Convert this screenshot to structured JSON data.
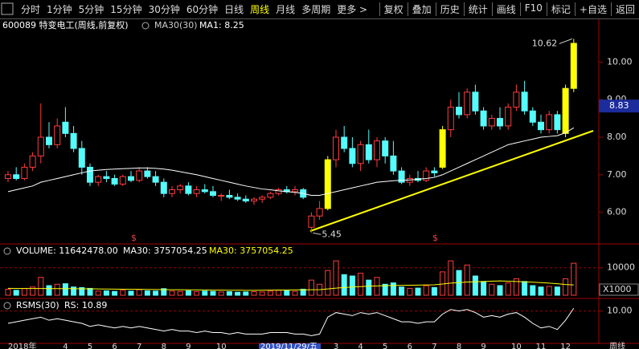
{
  "toolbar": {
    "tabs": [
      "分时",
      "1分钟",
      "5分钟",
      "15分钟",
      "30分钟",
      "60分钟",
      "日线",
      "周线",
      "月线",
      "多周期",
      "更多 >"
    ],
    "buttons": [
      "复权",
      "叠加",
      "历史",
      "统计",
      "画线",
      "F10",
      "标记",
      "+自选",
      "返回"
    ]
  },
  "chart_data": [
    {
      "type": "candlestick",
      "title": "600089 特变电工(周线,前复权)",
      "ma_name": "MA30(30)",
      "ma_value": "MA1: 8.25",
      "categories": [
        "2018年",
        null,
        null,
        null,
        null,
        null,
        null,
        "4",
        null,
        null,
        "5",
        null,
        null,
        "6",
        null,
        null,
        "7",
        null,
        null,
        "8",
        null,
        null,
        "9",
        null,
        null,
        null,
        "10",
        null,
        null,
        null,
        null,
        null,
        null,
        null,
        null,
        null,
        null,
        null,
        null,
        null,
        "3",
        null,
        null,
        "4",
        null,
        null,
        "5",
        null,
        null,
        "6",
        null,
        null,
        "7",
        null,
        null,
        "8",
        null,
        null,
        "9",
        null,
        null,
        null,
        "10",
        null,
        null,
        "11",
        null,
        null,
        "12",
        null
      ],
      "open": [
        6.9,
        7.0,
        6.9,
        7.2,
        7.5,
        8.0,
        7.8,
        8.4,
        8.1,
        7.7,
        7.2,
        6.8,
        6.95,
        6.9,
        6.75,
        6.95,
        6.85,
        7.1,
        6.95,
        6.8,
        6.5,
        6.6,
        6.7,
        6.5,
        6.6,
        6.55,
        6.45,
        6.45,
        6.4,
        6.35,
        6.3,
        6.35,
        6.4,
        6.5,
        6.6,
        6.55,
        6.6,
        5.6,
        5.9,
        6.1,
        7.4,
        8.0,
        7.7,
        7.3,
        7.8,
        7.4,
        7.9,
        7.5,
        7.1,
        6.8,
        6.9,
        6.85,
        7.1,
        7.2,
        8.2,
        8.8,
        8.6,
        9.2,
        8.7,
        8.3,
        8.5,
        8.3,
        8.8,
        9.2,
        8.7,
        8.4,
        8.2,
        8.6,
        8.1,
        9.3
      ],
      "high": [
        7.1,
        7.2,
        7.3,
        7.6,
        8.9,
        8.4,
        8.5,
        8.8,
        8.3,
        7.9,
        7.3,
        7.0,
        7.1,
        7.0,
        7.0,
        7.1,
        7.2,
        7.2,
        7.1,
        6.9,
        6.7,
        6.75,
        6.8,
        6.7,
        6.75,
        6.7,
        6.5,
        6.6,
        6.5,
        6.45,
        6.4,
        6.45,
        6.55,
        6.65,
        6.7,
        6.7,
        6.65,
        6.0,
        6.3,
        7.5,
        8.2,
        8.3,
        8.0,
        7.9,
        8.2,
        8.0,
        8.0,
        7.9,
        7.2,
        7.0,
        7.1,
        7.2,
        7.2,
        8.3,
        9.0,
        9.2,
        9.3,
        9.4,
        8.8,
        8.6,
        8.8,
        8.9,
        9.4,
        9.5,
        8.8,
        8.6,
        8.7,
        8.7,
        9.4,
        10.62
      ],
      "low": [
        6.8,
        6.85,
        6.85,
        7.1,
        7.3,
        7.7,
        7.7,
        8.0,
        7.6,
        7.0,
        6.7,
        6.7,
        6.8,
        6.7,
        6.7,
        6.8,
        6.8,
        6.9,
        6.7,
        6.4,
        6.4,
        6.5,
        6.45,
        6.4,
        6.5,
        6.4,
        6.3,
        6.35,
        6.3,
        6.25,
        6.2,
        6.25,
        6.35,
        6.45,
        6.5,
        6.45,
        6.35,
        5.45,
        5.8,
        6.05,
        7.2,
        7.6,
        7.2,
        7.1,
        7.3,
        7.2,
        7.3,
        7.0,
        6.75,
        6.7,
        6.8,
        6.8,
        6.95,
        7.15,
        8.0,
        8.5,
        8.5,
        8.6,
        8.2,
        8.2,
        8.2,
        8.2,
        8.7,
        8.6,
        8.3,
        8.1,
        8.1,
        8.1,
        8.0,
        9.2
      ],
      "close": [
        7.0,
        6.9,
        7.2,
        7.5,
        8.0,
        7.8,
        8.3,
        8.1,
        7.7,
        7.2,
        6.8,
        6.95,
        6.9,
        6.75,
        6.95,
        6.85,
        7.1,
        6.95,
        6.8,
        6.5,
        6.6,
        6.7,
        6.5,
        6.6,
        6.55,
        6.45,
        6.45,
        6.4,
        6.35,
        6.3,
        6.35,
        6.4,
        6.5,
        6.6,
        6.55,
        6.6,
        6.4,
        5.9,
        6.1,
        7.4,
        8.0,
        7.7,
        7.3,
        7.8,
        7.4,
        7.9,
        7.5,
        7.1,
        6.8,
        6.9,
        6.85,
        7.1,
        7.05,
        8.2,
        8.8,
        8.6,
        9.2,
        8.7,
        8.3,
        8.5,
        8.3,
        8.8,
        9.2,
        8.7,
        8.4,
        8.2,
        8.6,
        8.2,
        9.3,
        10.5
      ],
      "colors": [
        "#ff3c3c",
        "#54fcfc",
        "#ff3c3c",
        "#ff3c3c",
        "#ff3c3c",
        "#54fcfc",
        "#ff3c3c",
        "#54fcfc",
        "#54fcfc",
        "#54fcfc",
        "#54fcfc",
        "#ff3c3c",
        "#54fcfc",
        "#54fcfc",
        "#ff3c3c",
        "#54fcfc",
        "#ff3c3c",
        "#54fcfc",
        "#54fcfc",
        "#54fcfc",
        "#ff3c3c",
        "#ff3c3c",
        "#54fcfc",
        "#ff3c3c",
        "#54fcfc",
        "#54fcfc",
        "#ff3c3c",
        "#54fcfc",
        "#54fcfc",
        "#54fcfc",
        "#ff3c3c",
        "#ff3c3c",
        "#ff3c3c",
        "#ff3c3c",
        "#54fcfc",
        "#ff3c3c",
        "#54fcfc",
        "#ff3c3c",
        "#ff3c3c",
        "#ffff00",
        "#ff3c3c",
        "#54fcfc",
        "#54fcfc",
        "#ff3c3c",
        "#54fcfc",
        "#ff3c3c",
        "#54fcfc",
        "#54fcfc",
        "#54fcfc",
        "#ff3c3c",
        "#54fcfc",
        "#ff3c3c",
        "#54fcfc",
        "#ffff00",
        "#ff3c3c",
        "#54fcfc",
        "#ff3c3c",
        "#54fcfc",
        "#54fcfc",
        "#ff3c3c",
        "#54fcfc",
        "#ff3c3c",
        "#ff3c3c",
        "#54fcfc",
        "#54fcfc",
        "#54fcfc",
        "#ff3c3c",
        "#54fcfc",
        "#ffff00",
        "#ffff00"
      ],
      "ma": [
        6.55,
        6.6,
        6.65,
        6.7,
        6.8,
        6.85,
        6.9,
        6.95,
        7.0,
        7.05,
        7.1,
        7.12,
        7.14,
        7.15,
        7.16,
        7.17,
        7.18,
        7.18,
        7.17,
        7.15,
        7.12,
        7.08,
        7.04,
        7.0,
        6.95,
        6.9,
        6.85,
        6.8,
        6.75,
        6.7,
        6.66,
        6.62,
        6.6,
        6.57,
        6.55,
        6.53,
        6.5,
        6.45,
        6.45,
        6.5,
        6.55,
        6.6,
        6.65,
        6.7,
        6.75,
        6.8,
        6.82,
        6.84,
        6.85,
        6.86,
        6.88,
        6.9,
        6.93,
        7.0,
        7.1,
        7.2,
        7.3,
        7.4,
        7.5,
        7.6,
        7.7,
        7.8,
        7.85,
        7.9,
        7.95,
        8.0,
        8.02,
        8.04,
        8.12,
        8.25
      ],
      "ma_color": "#ffffff",
      "ylim": [
        5.2,
        10.8
      ],
      "yticks": [
        {
          "value": 6,
          "label": "6.00"
        },
        {
          "value": 7,
          "label": "7.00"
        },
        {
          "value": 8,
          "label": "8.00"
        },
        {
          "value": 9,
          "label": "9.00"
        },
        {
          "value": 10,
          "label": "10.00"
        }
      ],
      "high_label": 10.62,
      "low_label": 5.45,
      "last_price": 8.83,
      "markers": [
        "$",
        "$"
      ],
      "cursor_label": "2019/11/29/五",
      "period_label": "周线",
      "grid": false
    },
    {
      "type": "bar",
      "title": "VOLUME: 11642478.00",
      "ma_label": "MA30: 3757054.25",
      "ma_label_2": "MA30: 3757054.25",
      "values": [
        2200,
        1800,
        2500,
        3000,
        6500,
        3500,
        4000,
        4200,
        3000,
        2800,
        2500,
        1500,
        1600,
        1400,
        1800,
        1500,
        2000,
        1600,
        1500,
        2400,
        1500,
        1400,
        1600,
        1300,
        1500,
        1400,
        1200,
        1300,
        1100,
        1200,
        1300,
        1200,
        1500,
        1800,
        1600,
        1400,
        2200,
        5500,
        4000,
        9000,
        12500,
        7500,
        7000,
        8000,
        5500,
        6500,
        4000,
        4500,
        3000,
        2500,
        2600,
        3500,
        2800,
        8500,
        12500,
        9000,
        11000,
        7000,
        5000,
        4000,
        3500,
        4500,
        6000,
        5000,
        3500,
        3000,
        3200,
        3000,
        6000,
        11642
      ],
      "ma": [
        2500,
        2480,
        2460,
        2450,
        2440,
        2430,
        2420,
        2400,
        2380,
        2350,
        2320,
        2290,
        2260,
        2230,
        2200,
        2170,
        2140,
        2110,
        2080,
        2050,
        2020,
        1990,
        1960,
        1930,
        1900,
        1870,
        1850,
        1830,
        1810,
        1800,
        1800,
        1820,
        1850,
        1880,
        1900,
        1930,
        1960,
        2000,
        2050,
        2300,
        2600,
        2800,
        3000,
        3150,
        3300,
        3400,
        3500,
        3550,
        3600,
        3650,
        3700,
        3750,
        3800,
        4100,
        4400,
        4600,
        4800,
        4900,
        5000,
        5100,
        5200,
        5100,
        5000,
        4900,
        4750,
        4600,
        4400,
        4200,
        3900,
        3757
      ],
      "ma_color": "#ffff00",
      "up_color": "#ff3c3c",
      "down_color": "#54fcfc",
      "ylim": [
        0,
        14000
      ],
      "yticks": [
        10000
      ],
      "unit_label": "X1000",
      "grid": true
    },
    {
      "type": "line",
      "title": "RSMS(30)",
      "value_label": "RS: 10.89",
      "values": [
        6,
        6.5,
        7,
        7.5,
        8,
        7,
        7.5,
        7,
        6.5,
        6,
        5,
        5.5,
        5,
        4.5,
        5,
        4.5,
        5,
        4.5,
        4,
        3.5,
        4,
        3.5,
        3.5,
        3,
        3.5,
        3,
        3,
        2.5,
        3,
        2.5,
        2.5,
        2.5,
        3,
        3,
        3,
        2.5,
        2.5,
        2,
        2.5,
        8,
        9.5,
        9,
        8.5,
        9.5,
        9,
        9.5,
        8.5,
        7.5,
        6.5,
        6.5,
        6,
        6.5,
        6.5,
        9,
        10.5,
        10,
        10.5,
        9.5,
        8,
        8.5,
        8,
        9,
        9.5,
        8,
        6,
        4.5,
        5,
        4,
        7,
        10.89
      ],
      "color": "#ffffff",
      "ylim": [
        0,
        12
      ],
      "yticks": [
        {
          "value": 10,
          "label": "10.00"
        }
      ],
      "grid": true
    }
  ]
}
